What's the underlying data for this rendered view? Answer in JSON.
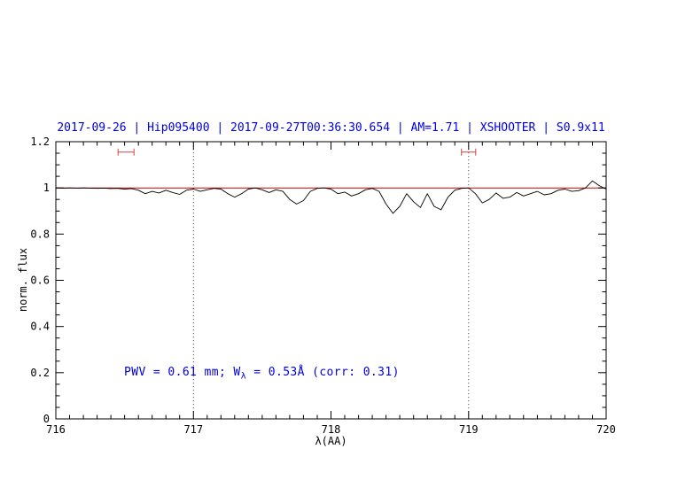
{
  "colors": {
    "title": "#0000dd",
    "annotation": "#0000dd",
    "continuum": "#cc0000",
    "marker": "#cc4444",
    "spectrum": "#000000",
    "vline": "#444444"
  },
  "annotation": {
    "part1": "PWV = 0.61 mm; W",
    "sub": "λ",
    "part2": " = 0.53Å (corr: 0.31)"
  },
  "chart_data": {
    "type": "line",
    "title": "2017-09-26 | Hip095400 | 2017-09-27T00:36:30.654 | AM=1.71 | XSHOOTER | S0.9x11",
    "xlabel": "λ(AA)",
    "ylabel": "norm. flux",
    "xlim": [
      716,
      720
    ],
    "ylim": [
      0,
      1.2
    ],
    "grid": false,
    "xticks": [
      716,
      717,
      718,
      719,
      720
    ],
    "xtick_labels": [
      "716",
      "717",
      "718",
      "719",
      "720"
    ],
    "yticks": [
      0,
      0.2,
      0.4,
      0.6,
      0.8,
      1,
      1.2
    ],
    "ytick_labels": [
      "0",
      "0.2",
      "0.4",
      "0.6",
      "0.8",
      "1",
      "1.2"
    ],
    "x_minor_step": 0.1,
    "y_minor_step": 0.05,
    "vlines_dotted": [
      717,
      719
    ],
    "continuum_y": 1.0,
    "band_markers": [
      {
        "x_center": 716.51,
        "half_width": 0.058,
        "y": 1.155
      },
      {
        "x_center": 719.0,
        "half_width": 0.052,
        "y": 1.155
      }
    ],
    "series": [
      {
        "name": "normalized-spectrum",
        "x": [
          716,
          716.05,
          716.1,
          716.15,
          716.2,
          716.25,
          716.3,
          716.35,
          716.4,
          716.45,
          716.5,
          716.55,
          716.6,
          716.65,
          716.7,
          716.75,
          716.8,
          716.85,
          716.9,
          716.95,
          717,
          717.05,
          717.1,
          717.15,
          717.2,
          717.25,
          717.3,
          717.35,
          717.4,
          717.45,
          717.5,
          717.55,
          717.6,
          717.65,
          717.7,
          717.75,
          717.8,
          717.85,
          717.9,
          717.95,
          718,
          718.05,
          718.1,
          718.15,
          718.2,
          718.25,
          718.3,
          718.35,
          718.4,
          718.45,
          718.5,
          718.55,
          718.6,
          718.65,
          718.7,
          718.75,
          718.8,
          718.85,
          718.9,
          718.95,
          719,
          719.05,
          719.1,
          719.15,
          719.2,
          719.25,
          719.3,
          719.35,
          719.4,
          719.45,
          719.5,
          719.55,
          719.6,
          719.65,
          719.7,
          719.75,
          719.8,
          719.85,
          719.9,
          719.95,
          720
        ],
        "y": [
          1.0,
          0.999,
          1.0,
          0.999,
          1.0,
          0.999,
          0.998,
          0.999,
          0.997,
          0.998,
          0.995,
          0.997,
          0.99,
          0.975,
          0.985,
          0.978,
          0.99,
          0.98,
          0.972,
          0.99,
          0.995,
          0.985,
          0.992,
          0.998,
          0.995,
          0.975,
          0.96,
          0.975,
          0.995,
          1.0,
          0.992,
          0.98,
          0.992,
          0.985,
          0.95,
          0.93,
          0.945,
          0.985,
          0.998,
          1.0,
          0.995,
          0.975,
          0.982,
          0.965,
          0.975,
          0.992,
          0.998,
          0.985,
          0.93,
          0.89,
          0.92,
          0.975,
          0.94,
          0.915,
          0.975,
          0.92,
          0.905,
          0.96,
          0.99,
          0.998,
          1.0,
          0.975,
          0.935,
          0.95,
          0.978,
          0.955,
          0.96,
          0.98,
          0.965,
          0.975,
          0.985,
          0.97,
          0.975,
          0.99,
          0.995,
          0.985,
          0.988,
          1.0,
          1.03,
          1.01,
          0.995
        ]
      }
    ]
  }
}
